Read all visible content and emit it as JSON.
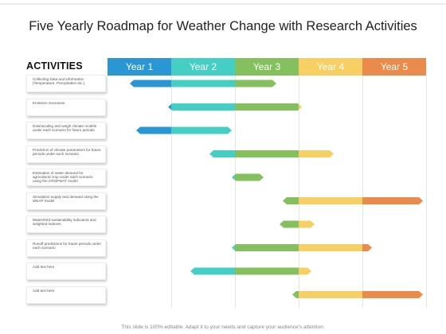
{
  "title": "Five Yearly Roadmap for Weather Change with Research Activities",
  "activities_header": "ACTIVITIES",
  "footer": "This slide is 100% editable. Adapt it to your needs and capture your audience's attention.",
  "years": [
    {
      "label": "Year 1",
      "color": "#2a96d3"
    },
    {
      "label": "Year 2",
      "color": "#45cfc4"
    },
    {
      "label": "Year 3",
      "color": "#84c15e"
    },
    {
      "label": "Year 4",
      "color": "#f7cf62"
    },
    {
      "label": "Year 5",
      "color": "#ea8a4b"
    }
  ],
  "chart_data": {
    "type": "gantt",
    "x_unit": "year",
    "rows": [
      {
        "label": "Collecting Data and information (Temperature, Precipitation etc.)",
        "start": 1.35,
        "end": 3.65
      },
      {
        "label": "Emission Scenarios",
        "start": 1.95,
        "end": 4.05
      },
      {
        "label": "Downscaling and weigh climate models under each scenario for future periods",
        "start": 1.45,
        "end": 2.95
      },
      {
        "label": "Prediction of climate parameters for future periods under each scenario",
        "start": 2.6,
        "end": 4.55
      },
      {
        "label": "Estimation of water demand for agricultural crop under each scenario using the CROPWAT model",
        "start": 2.95,
        "end": 3.45
      },
      {
        "label": "Simulation supply and demand using the WEAP model",
        "start": 3.75,
        "end": 5.95
      },
      {
        "label": "Watershed sustainability indicators and weighted indexes",
        "start": 3.7,
        "end": 4.25
      },
      {
        "label": "Runoff predictions for future periods under each scenario",
        "start": 2.95,
        "end": 5.15
      },
      {
        "label": "Add text here",
        "start": 2.3,
        "end": 4.2
      },
      {
        "label": "Add text here",
        "start": 3.9,
        "end": 5.95
      }
    ]
  }
}
